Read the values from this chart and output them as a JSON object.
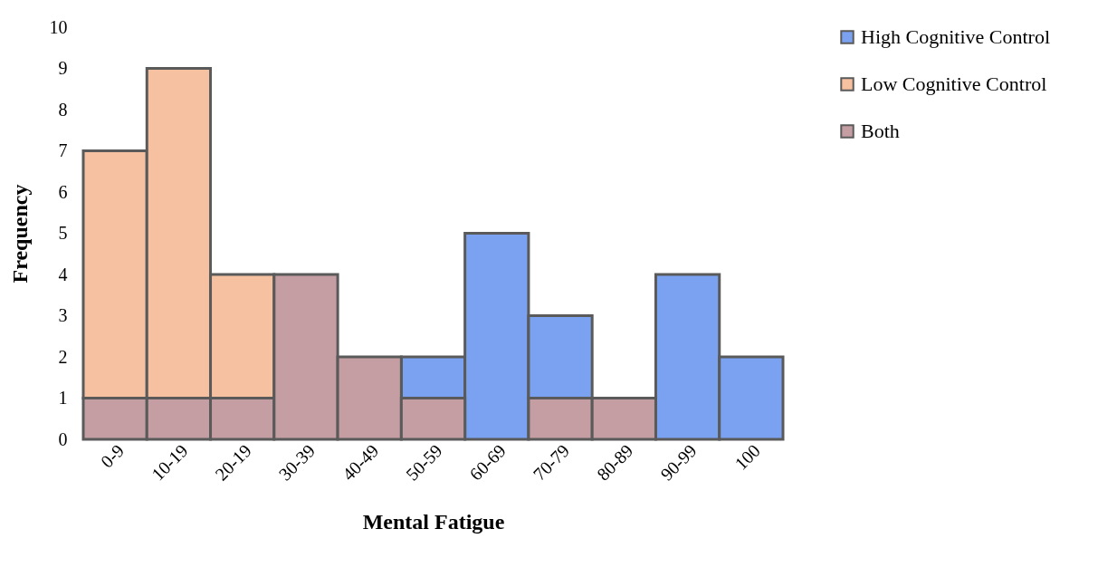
{
  "chart_data": {
    "type": "bar",
    "xlabel": "Mental Fatigue",
    "ylabel": "Frequency",
    "categories": [
      "0-9",
      "10-19",
      "20-19",
      "30-39",
      "40-49",
      "50-59",
      "60-69",
      "70-79",
      "80-89",
      "90-99",
      "100"
    ],
    "stacked": true,
    "series": [
      {
        "name": "High Cognitive Control",
        "color": "#7ba2f0",
        "values": [
          0,
          0,
          0,
          0,
          0,
          1,
          5,
          2,
          0,
          4,
          2
        ]
      },
      {
        "name": "Low Cognitive Control",
        "color": "#f5c1a0",
        "values": [
          6,
          8,
          3,
          0,
          0,
          0,
          0,
          0,
          0,
          0,
          0
        ]
      },
      {
        "name": "Both",
        "color": "#c49ea2",
        "values": [
          1,
          1,
          1,
          4,
          2,
          1,
          0,
          1,
          1,
          0,
          0
        ]
      }
    ],
    "ylim": [
      0,
      10
    ],
    "yticks": [
      0,
      1,
      2,
      3,
      4,
      5,
      6,
      7,
      8,
      9,
      10
    ],
    "grid": false,
    "legend": "right"
  }
}
